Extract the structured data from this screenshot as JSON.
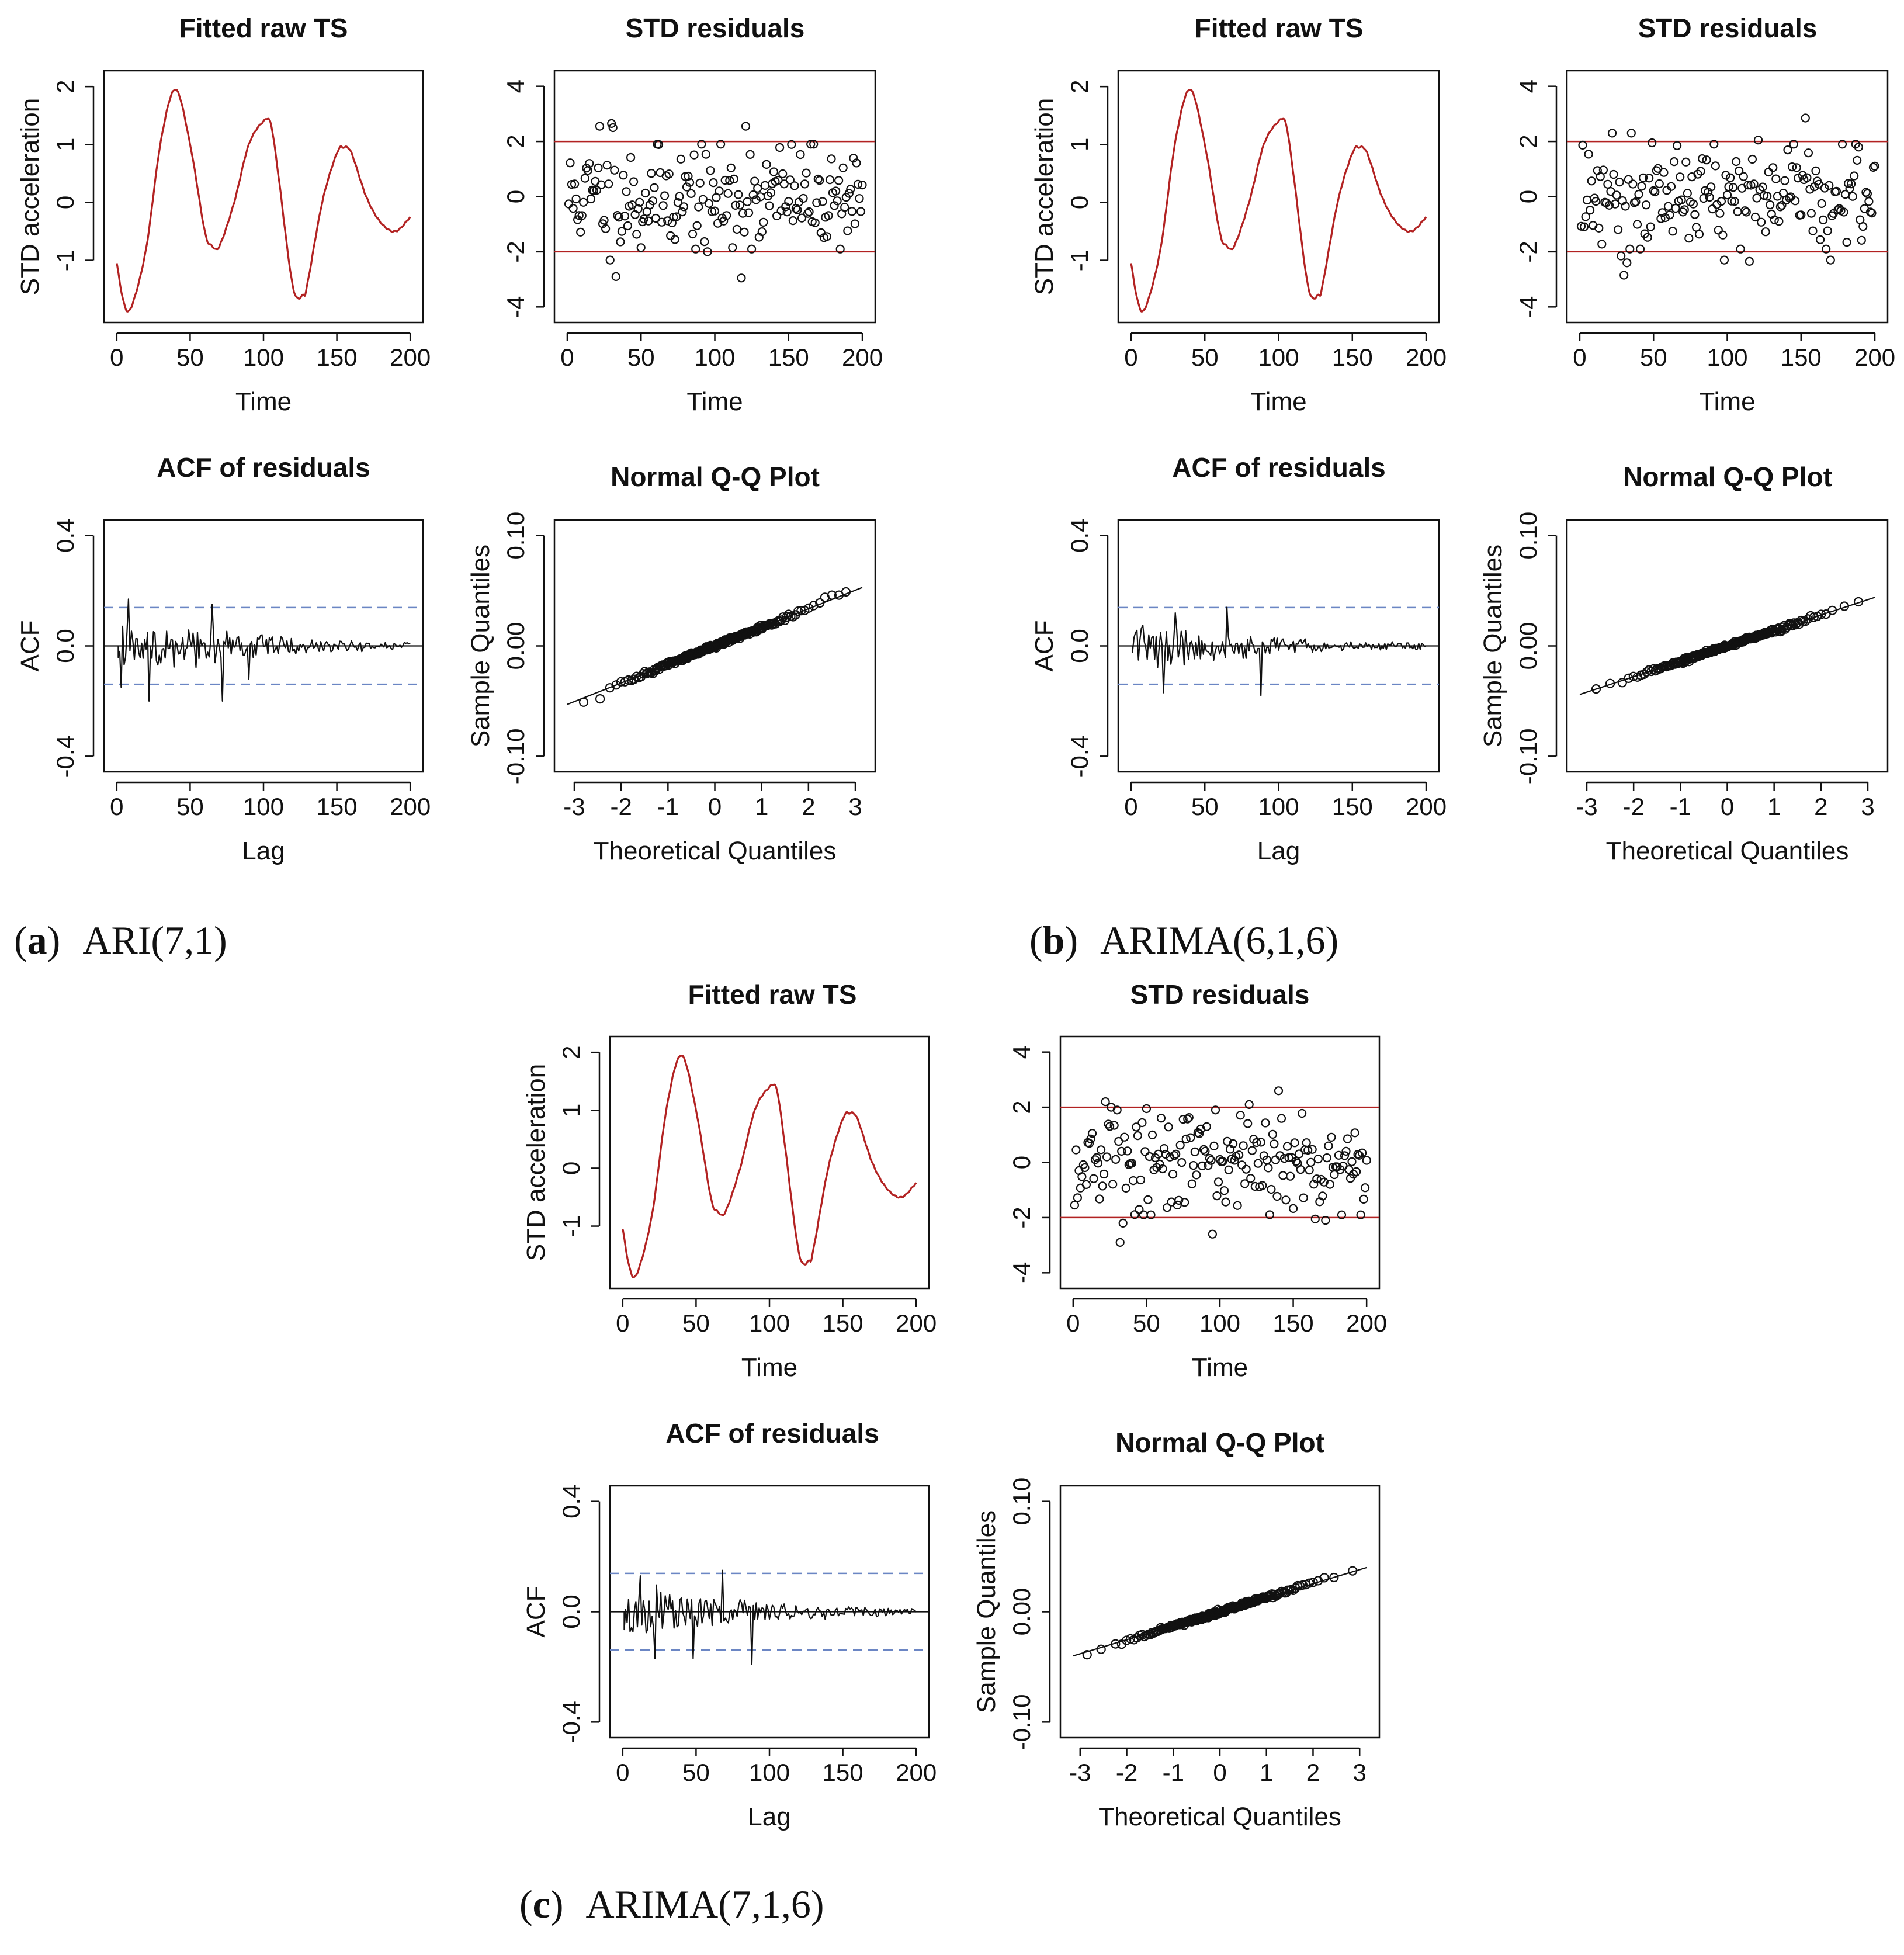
{
  "colors": {
    "series": "#b22222",
    "band": "#6b86c4",
    "ink": "#111111"
  },
  "captions": [
    {
      "id": "a",
      "label": "a",
      "model": "ARI(7,1)"
    },
    {
      "id": "b",
      "label": "b",
      "model": "ARIMA(6,1,6)"
    },
    {
      "id": "c",
      "label": "c",
      "model": "ARIMA(7,1,6)"
    }
  ],
  "chart_data": [
    {
      "panel": "a",
      "model": "ARI(7,1)",
      "type": "line",
      "title": "Fitted raw TS",
      "xlabel": "Time",
      "ylabel": "STD acceleration",
      "xlim": [
        0,
        200
      ],
      "ylim": [
        -1.9,
        2.1
      ],
      "xticks": [
        0,
        50,
        100,
        150,
        200
      ],
      "yticks": [
        -1,
        0,
        1,
        2
      ],
      "x": [
        0,
        5,
        10,
        20,
        30,
        40,
        50,
        60,
        65,
        70,
        80,
        90,
        100,
        105,
        110,
        120,
        127,
        130,
        140,
        150,
        155,
        160,
        170,
        180,
        190,
        200
      ],
      "y": [
        -1.05,
        -1.75,
        -1.8,
        -0.8,
        1.05,
        1.95,
        1.0,
        -0.5,
        -0.75,
        -0.75,
        0.0,
        1.0,
        1.4,
        1.35,
        0.5,
        -1.45,
        -1.6,
        -1.4,
        0.0,
        0.85,
        0.95,
        0.85,
        0.1,
        -0.35,
        -0.5,
        -0.25
      ]
    },
    {
      "panel": "a",
      "model": "ARI(7,1)",
      "type": "scatter",
      "title": "STD residuals",
      "xlabel": "Time",
      "ylabel": "",
      "xlim": [
        0,
        200
      ],
      "ylim": [
        -4.2,
        4.2
      ],
      "xticks": [
        0,
        50,
        100,
        150,
        200
      ],
      "yticks": [
        -4,
        -2,
        0,
        2,
        4
      ],
      "reference_lines": [
        2,
        -2
      ],
      "seed": 11,
      "n": 200,
      "sd": 0.95,
      "extremes": [
        [
          22,
          2.55
        ],
        [
          30,
          2.65
        ],
        [
          31,
          2.5
        ],
        [
          121,
          2.55
        ],
        [
          33,
          -2.9
        ],
        [
          118,
          -2.95
        ],
        [
          29,
          -2.3
        ],
        [
          50,
          -1.85
        ],
        [
          95,
          -2.0
        ],
        [
          112,
          -1.85
        ]
      ]
    },
    {
      "panel": "a",
      "model": "ARI(7,1)",
      "type": "line",
      "title": "ACF of residuals",
      "xlabel": "Lag",
      "ylabel": "ACF",
      "xlim": [
        0,
        200
      ],
      "ylim": [
        -0.42,
        0.42
      ],
      "xticks": [
        0,
        50,
        100,
        150,
        200
      ],
      "yticks": [
        -0.4,
        0.0,
        0.4
      ],
      "ytick_labels": [
        "-0.4",
        "0.0",
        "0.4"
      ],
      "confidence_band": [
        0.139,
        -0.139
      ],
      "seed": 21,
      "n_lags": 200,
      "amplitude": 0.1,
      "spikes": [
        [
          8,
          0.17
        ],
        [
          22,
          -0.2
        ],
        [
          65,
          0.15
        ],
        [
          72,
          -0.2
        ],
        [
          3,
          -0.15
        ],
        [
          90,
          -0.12
        ]
      ]
    },
    {
      "panel": "a",
      "model": "ARI(7,1)",
      "type": "scatter",
      "title": "Normal Q-Q Plot",
      "xlabel": "Theoretical Quantiles",
      "ylabel": "Sample Quantiles",
      "xlim": [
        -3.15,
        3.15
      ],
      "ylim": [
        -0.105,
        0.105
      ],
      "xticks": [
        -3,
        -2,
        -1,
        0,
        1,
        2,
        3
      ],
      "yticks": [
        -0.1,
        0.0,
        0.1
      ],
      "ytick_labels": [
        "-0.10",
        "0.00",
        "0.10"
      ],
      "n": 200,
      "slope": 0.0168,
      "intercept": 0.0,
      "tail_points": [
        [
          -2.8,
          -0.051
        ],
        [
          -2.45,
          -0.048
        ],
        [
          2.35,
          0.044
        ],
        [
          2.5,
          0.046
        ],
        [
          2.65,
          0.046
        ],
        [
          2.8,
          0.049
        ]
      ],
      "fit_line": {
        "x": [
          -3.15,
          3.15
        ],
        "y": [
          -0.053,
          0.053
        ]
      }
    },
    {
      "panel": "b",
      "model": "ARIMA(6,1,6)",
      "type": "line",
      "title": "Fitted raw TS",
      "xlabel": "Time",
      "ylabel": "STD acceleration",
      "xlim": [
        0,
        200
      ],
      "ylim": [
        -1.9,
        2.1
      ],
      "xticks": [
        0,
        50,
        100,
        150,
        200
      ],
      "yticks": [
        -1,
        0,
        1,
        2
      ],
      "x": [
        0,
        5,
        10,
        20,
        30,
        40,
        50,
        60,
        65,
        70,
        80,
        90,
        100,
        105,
        110,
        120,
        127,
        130,
        140,
        150,
        155,
        160,
        170,
        180,
        190,
        200
      ],
      "y": [
        -1.05,
        -1.75,
        -1.8,
        -0.8,
        1.05,
        1.95,
        1.0,
        -0.5,
        -0.75,
        -0.75,
        0.0,
        1.0,
        1.4,
        1.35,
        0.5,
        -1.45,
        -1.6,
        -1.4,
        0.0,
        0.85,
        0.95,
        0.85,
        0.1,
        -0.35,
        -0.5,
        -0.25
      ]
    },
    {
      "panel": "b",
      "model": "ARIMA(6,1,6)",
      "type": "scatter",
      "title": "STD residuals",
      "xlabel": "Time",
      "ylabel": "",
      "xlim": [
        0,
        200
      ],
      "ylim": [
        -4.2,
        4.2
      ],
      "xticks": [
        0,
        50,
        100,
        150,
        200
      ],
      "yticks": [
        -4,
        -2,
        0,
        2,
        4
      ],
      "reference_lines": [
        2,
        -2
      ],
      "seed": 12,
      "n": 200,
      "sd": 0.95,
      "extremes": [
        [
          22,
          2.3
        ],
        [
          35,
          2.3
        ],
        [
          153,
          2.85
        ],
        [
          30,
          -2.85
        ],
        [
          32,
          -2.4
        ],
        [
          28,
          -2.15
        ],
        [
          98,
          -2.3
        ],
        [
          115,
          -2.35
        ],
        [
          170,
          -2.3
        ],
        [
          49,
          1.95
        ],
        [
          121,
          2.05
        ]
      ]
    },
    {
      "panel": "b",
      "model": "ARIMA(6,1,6)",
      "type": "line",
      "title": "ACF of residuals",
      "xlabel": "Lag",
      "ylabel": "ACF",
      "xlim": [
        0,
        200
      ],
      "ylim": [
        -0.42,
        0.42
      ],
      "xticks": [
        0,
        50,
        100,
        150,
        200
      ],
      "yticks": [
        -0.4,
        0.0,
        0.4
      ],
      "ytick_labels": [
        "-0.4",
        "0.0",
        "0.4"
      ],
      "confidence_band": [
        0.139,
        -0.139
      ],
      "seed": 22,
      "n_lags": 200,
      "amplitude": 0.08,
      "spikes": [
        [
          22,
          -0.17
        ],
        [
          65,
          0.14
        ],
        [
          88,
          -0.18
        ],
        [
          30,
          0.12
        ]
      ]
    },
    {
      "panel": "b",
      "model": "ARIMA(6,1,6)",
      "type": "scatter",
      "title": "Normal Q-Q Plot",
      "xlabel": "Theoretical Quantiles",
      "ylabel": "Sample Quantiles",
      "xlim": [
        -3.15,
        3.15
      ],
      "ylim": [
        -0.105,
        0.105
      ],
      "xticks": [
        -3,
        -2,
        -1,
        0,
        1,
        2,
        3
      ],
      "yticks": [
        -0.1,
        0.0,
        0.1
      ],
      "ytick_labels": [
        "-0.10",
        "0.00",
        "0.10"
      ],
      "n": 200,
      "slope": 0.0138,
      "intercept": 0.0,
      "tail_points": [
        [
          -2.8,
          -0.039
        ],
        [
          -2.5,
          -0.034
        ],
        [
          2.5,
          0.036
        ],
        [
          2.8,
          0.04
        ]
      ],
      "fit_line": {
        "x": [
          -3.15,
          3.15
        ],
        "y": [
          -0.044,
          0.044
        ]
      }
    },
    {
      "panel": "c",
      "model": "ARIMA(7,1,6)",
      "type": "line",
      "title": "Fitted raw TS",
      "xlabel": "Time",
      "ylabel": "STD acceleration",
      "xlim": [
        0,
        200
      ],
      "ylim": [
        -1.9,
        2.1
      ],
      "xticks": [
        0,
        50,
        100,
        150,
        200
      ],
      "yticks": [
        -1,
        0,
        1,
        2
      ],
      "x": [
        0,
        5,
        10,
        20,
        30,
        40,
        50,
        60,
        65,
        70,
        80,
        90,
        100,
        105,
        110,
        120,
        127,
        130,
        140,
        150,
        155,
        160,
        170,
        180,
        190,
        200
      ],
      "y": [
        -1.05,
        -1.75,
        -1.8,
        -0.8,
        1.05,
        1.95,
        1.0,
        -0.5,
        -0.75,
        -0.75,
        0.0,
        1.0,
        1.4,
        1.35,
        0.5,
        -1.45,
        -1.6,
        -1.4,
        0.0,
        0.85,
        0.95,
        0.85,
        0.1,
        -0.35,
        -0.5,
        -0.25
      ]
    },
    {
      "panel": "c",
      "model": "ARIMA(7,1,6)",
      "type": "scatter",
      "title": "STD residuals",
      "xlabel": "Time",
      "ylabel": "",
      "xlim": [
        0,
        200
      ],
      "ylim": [
        -4.2,
        4.2
      ],
      "xticks": [
        0,
        50,
        100,
        150,
        200
      ],
      "yticks": [
        -4,
        -2,
        0,
        2,
        4
      ],
      "reference_lines": [
        2,
        -2
      ],
      "seed": 13,
      "n": 200,
      "sd": 0.95,
      "extremes": [
        [
          22,
          2.2
        ],
        [
          26,
          2.0
        ],
        [
          32,
          -2.9
        ],
        [
          34,
          -2.2
        ],
        [
          95,
          -2.6
        ],
        [
          120,
          2.1
        ],
        [
          140,
          2.6
        ],
        [
          165,
          -2.05
        ],
        [
          172,
          -2.1
        ],
        [
          50,
          1.95
        ]
      ]
    },
    {
      "panel": "c",
      "model": "ARIMA(7,1,6)",
      "type": "line",
      "title": "ACF of residuals",
      "xlabel": "Lag",
      "ylabel": "ACF",
      "xlim": [
        0,
        200
      ],
      "ylim": [
        -0.42,
        0.42
      ],
      "xticks": [
        0,
        50,
        100,
        150,
        200
      ],
      "yticks": [
        -0.4,
        0.0,
        0.4
      ],
      "ytick_labels": [
        "-0.4",
        "0.0",
        "0.4"
      ],
      "confidence_band": [
        0.139,
        -0.139
      ],
      "seed": 23,
      "n_lags": 200,
      "amplitude": 0.09,
      "spikes": [
        [
          22,
          -0.17
        ],
        [
          48,
          -0.17
        ],
        [
          68,
          0.15
        ],
        [
          88,
          -0.19
        ],
        [
          12,
          0.13
        ]
      ]
    },
    {
      "panel": "c",
      "model": "ARIMA(7,1,6)",
      "type": "scatter",
      "title": "Normal Q-Q Plot",
      "xlabel": "Theoretical Quantiles",
      "ylabel": "Sample Quantiles",
      "xlim": [
        -3.15,
        3.15
      ],
      "ylim": [
        -0.105,
        0.105
      ],
      "xticks": [
        -3,
        -2,
        -1,
        0,
        1,
        2,
        3
      ],
      "yticks": [
        -0.1,
        0.0,
        0.1
      ],
      "ytick_labels": [
        "-0.10",
        "0.00",
        "0.10"
      ],
      "n": 200,
      "slope": 0.0132,
      "intercept": 0.0,
      "tail_points": [
        [
          -2.85,
          -0.039
        ],
        [
          -2.55,
          -0.034
        ],
        [
          2.45,
          0.031
        ],
        [
          2.85,
          0.037
        ]
      ],
      "fit_line": {
        "x": [
          -3.15,
          3.15
        ],
        "y": [
          -0.04,
          0.04
        ]
      }
    }
  ]
}
